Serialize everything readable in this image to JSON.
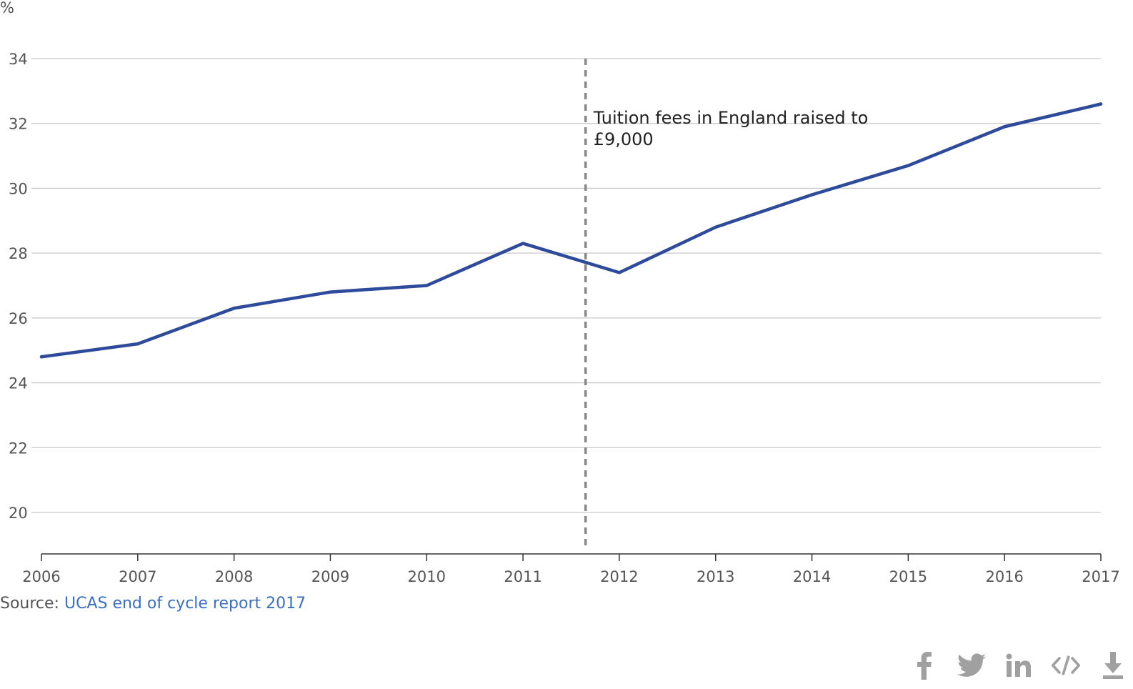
{
  "chart_data": {
    "type": "line",
    "ylabel": "%",
    "x": [
      2006,
      2007,
      2008,
      2009,
      2010,
      2011,
      2012,
      2013,
      2014,
      2015,
      2016,
      2017
    ],
    "series": [
      {
        "values": [
          24.8,
          25.2,
          26.3,
          26.8,
          27.0,
          28.3,
          27.4,
          28.8,
          29.8,
          30.7,
          31.9,
          32.6
        ]
      }
    ],
    "yticks": [
      20,
      22,
      24,
      26,
      28,
      30,
      32,
      34
    ],
    "ylim": [
      18.8,
      35.5
    ],
    "xlim": [
      2006,
      2017
    ],
    "grid": true,
    "annotation": {
      "x": 2011.65,
      "lines": [
        "Tuition fees in England raised to",
        "£9,000"
      ]
    },
    "colors": {
      "series": "#2d4a9b",
      "grid": "#c9c9c9",
      "annotation_line": "#888888"
    }
  },
  "source": {
    "prefix": "Source: ",
    "link_text": "UCAS end of cycle report 2017",
    "link_color": "#3a6fc4"
  },
  "share_icons": [
    "facebook-icon",
    "twitter-icon",
    "linkedin-icon",
    "embed-icon",
    "download-icon"
  ],
  "icon_color": "#a0a0a0"
}
